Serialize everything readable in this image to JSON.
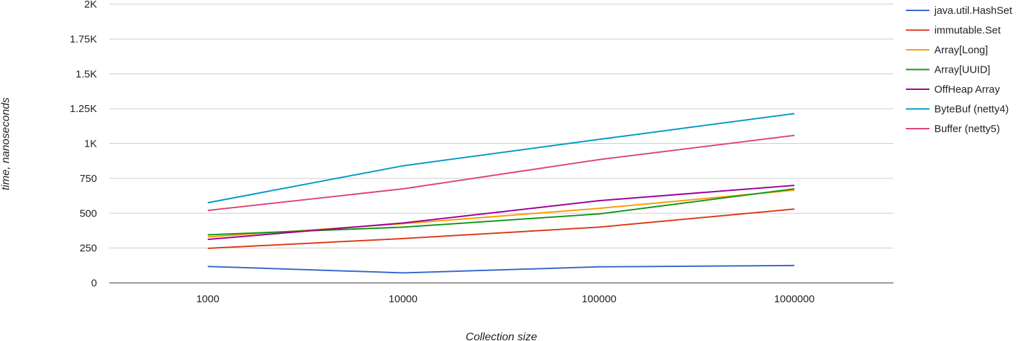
{
  "chart_data": {
    "type": "line",
    "xlabel": "Collection size",
    "ylabel": "time, nanoseconds",
    "categories": [
      "1000",
      "10000",
      "100000",
      "1000000"
    ],
    "ylim": [
      0,
      2000
    ],
    "yticks": [
      {
        "value": 0,
        "label": "0"
      },
      {
        "value": 250,
        "label": "250"
      },
      {
        "value": 500,
        "label": "500"
      },
      {
        "value": 750,
        "label": "750"
      },
      {
        "value": 1000,
        "label": "1K"
      },
      {
        "value": 1250,
        "label": "1.25K"
      },
      {
        "value": 1500,
        "label": "1.5K"
      },
      {
        "value": 1750,
        "label": "1.75K"
      },
      {
        "value": 2000,
        "label": "2K"
      }
    ],
    "grid": true,
    "legend_position": "right",
    "series": [
      {
        "name": "java.util.HashSet",
        "color": "#3366cc",
        "values": [
          118,
          72,
          115,
          125
        ]
      },
      {
        "name": "immutable.Set",
        "color": "#dc3912",
        "values": [
          248,
          318,
          400,
          530
        ]
      },
      {
        "name": "Array[Long]",
        "color": "#ff9900",
        "values": [
          330,
          425,
          535,
          665
        ]
      },
      {
        "name": "Array[UUID]",
        "color": "#109618",
        "values": [
          345,
          400,
          495,
          675
        ]
      },
      {
        "name": "OffHeap Array",
        "color": "#990099",
        "values": [
          312,
          430,
          590,
          700
        ]
      },
      {
        "name": "ByteBuf (netty4)",
        "color": "#0099c6",
        "values": [
          575,
          840,
          1030,
          1215
        ]
      },
      {
        "name": "Buffer (netty5)",
        "color": "#dd4477",
        "values": [
          520,
          675,
          885,
          1058
        ]
      }
    ]
  }
}
